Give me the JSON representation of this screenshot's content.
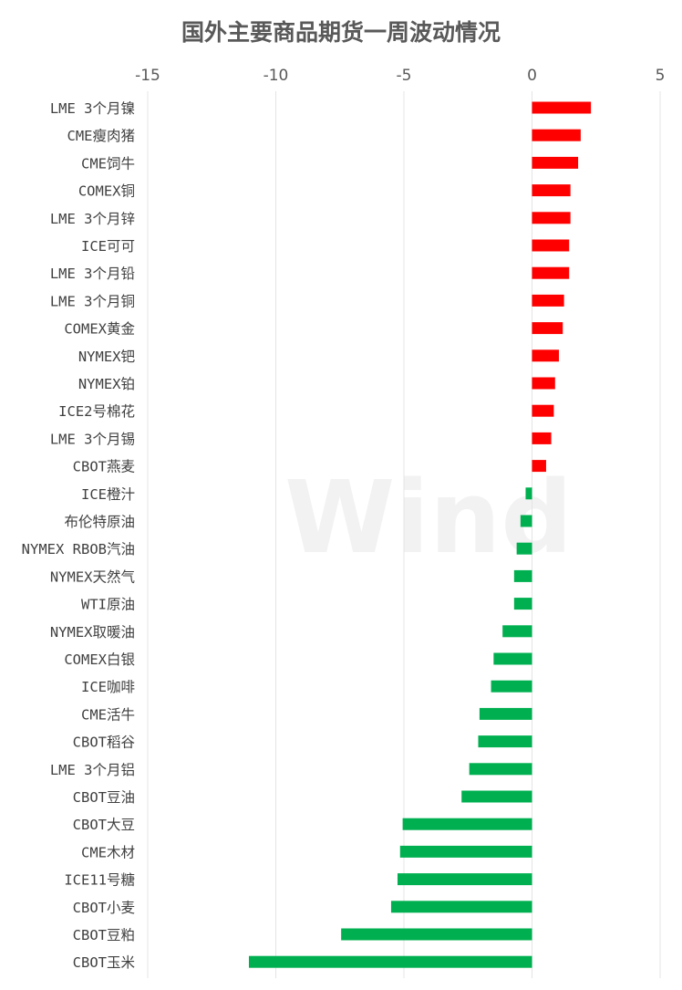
{
  "chart_data": {
    "type": "bar",
    "orientation": "horizontal",
    "title": "国外主要商品期货一周波动情况",
    "xlim": [
      -15,
      5
    ],
    "xticks": [
      -15,
      -10,
      -5,
      0,
      5
    ],
    "xtick_labels": [
      "-15",
      "-10",
      "-5",
      "0",
      "5"
    ],
    "axis_position": "top",
    "grid": true,
    "watermark": "Wind",
    "colors": {
      "positive": "#ff0000",
      "negative": "#00b050"
    },
    "categories": [
      "LME 3个月镍",
      "CME瘦肉猪",
      "CME饲牛",
      "COMEX铜",
      "LME 3个月锌",
      "ICE可可",
      "LME 3个月铅",
      "LME 3个月铜",
      "COMEX黄金",
      "NYMEX钯",
      "NYMEX铂",
      "ICE2号棉花",
      "LME 3个月锡",
      "CBOT燕麦",
      "ICE橙汁",
      "布伦特原油",
      "NYMEX RBOB汽油",
      "NYMEX天然气",
      "WTI原油",
      "NYMEX取暖油",
      "COMEX白银",
      "ICE咖啡",
      "CME活牛",
      "CBOT稻谷",
      "LME 3个月铝",
      "CBOT豆油",
      "CBOT大豆",
      "CME木材",
      "ICE11号糖",
      "CBOT小麦",
      "CBOT豆粕",
      "CBOT玉米"
    ],
    "values": [
      2.3,
      1.9,
      1.8,
      1.5,
      1.5,
      1.45,
      1.45,
      1.25,
      1.2,
      1.05,
      0.9,
      0.85,
      0.75,
      0.55,
      -0.25,
      -0.45,
      -0.6,
      -0.7,
      -0.7,
      -1.15,
      -1.5,
      -1.6,
      -2.05,
      -2.1,
      -2.45,
      -2.75,
      -5.05,
      -5.15,
      -5.25,
      -5.5,
      -7.45,
      -11.05
    ]
  }
}
